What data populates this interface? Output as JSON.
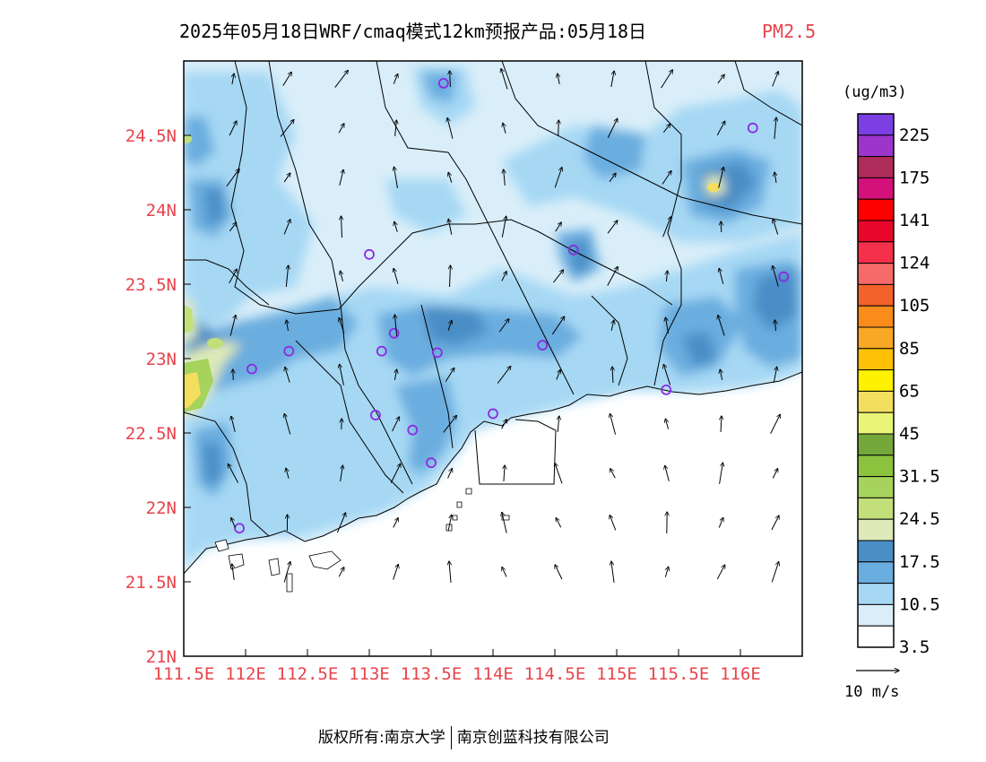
{
  "header": {
    "title": "2025年05月18日WRF/cmaq模式12km预报产品:05月18日",
    "pollutant": "PM2.5"
  },
  "map": {
    "lon_range": [
      111.5,
      116.5
    ],
    "lat_range": [
      21.0,
      25.0
    ],
    "x_tick_labels": [
      "111.5E",
      "112E",
      "112.5E",
      "113E",
      "113.5E",
      "114E",
      "114.5E",
      "115E",
      "115.5E",
      "116E"
    ],
    "y_tick_labels": [
      "21N",
      "21.5N",
      "22N",
      "22.5N",
      "23N",
      "23.5N",
      "24N",
      "24.5N"
    ],
    "tick_label_color": "#e8434b",
    "boundary_color": "#000000",
    "sea_color": "#ffffff",
    "stations_color": "#8a2be2",
    "stations": [
      {
        "lon": 113.6,
        "lat": 24.85
      },
      {
        "lon": 116.1,
        "lat": 24.55
      },
      {
        "lon": 113.0,
        "lat": 23.7
      },
      {
        "lon": 114.65,
        "lat": 23.73
      },
      {
        "lon": 116.35,
        "lat": 23.55
      },
      {
        "lon": 112.35,
        "lat": 23.05
      },
      {
        "lon": 113.1,
        "lat": 23.05
      },
      {
        "lon": 113.2,
        "lat": 23.17
      },
      {
        "lon": 113.55,
        "lat": 23.04
      },
      {
        "lon": 114.4,
        "lat": 23.09
      },
      {
        "lon": 112.05,
        "lat": 22.93
      },
      {
        "lon": 113.05,
        "lat": 22.62
      },
      {
        "lon": 113.35,
        "lat": 22.52
      },
      {
        "lon": 114.0,
        "lat": 22.63
      },
      {
        "lon": 113.5,
        "lat": 22.3
      },
      {
        "lon": 115.4,
        "lat": 22.79
      },
      {
        "lon": 111.95,
        "lat": 21.86
      }
    ]
  },
  "legend": {
    "unit": "(ug/m3)",
    "colors": [
      "#ffffff",
      "#d9eef9",
      "#a6d8f4",
      "#6aaddf",
      "#4a8ec6",
      "#dde9b8",
      "#c2df7a",
      "#a5d35c",
      "#8bc33f",
      "#74a83a",
      "#eaf577",
      "#f4de5e",
      "#fff200",
      "#ffc107",
      "#f9a825",
      "#f98c1b",
      "#f4622c",
      "#f76a6a",
      "#f4304a",
      "#e8062b",
      "#ff0000",
      "#d4107a",
      "#b02c5a",
      "#9d35cc",
      "#7b3fe4"
    ],
    "labels": [
      "3.5",
      "10.5",
      "17.5",
      "24.5",
      "31.5",
      "45",
      "65",
      "85",
      "105",
      "124",
      "141",
      "175",
      "225"
    ],
    "wind_ref_label": "10 m/s"
  },
  "footer": {
    "copyright": "版权所有:南京大学",
    "company": "南京创蓝科技有限公司"
  }
}
